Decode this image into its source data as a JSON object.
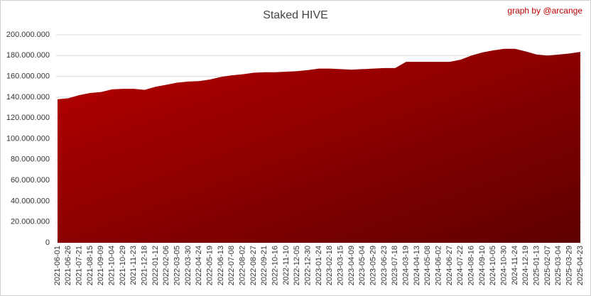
{
  "chart_data": {
    "type": "area",
    "title": "Staked HIVE",
    "annotation": "graph by @arcange",
    "categories": [
      "2021-06-01",
      "2021-06-26",
      "2021-07-21",
      "2021-08-15",
      "2021-09-09",
      "2021-10-04",
      "2021-10-29",
      "2021-11-23",
      "2021-12-18",
      "2022-01-12",
      "2022-02-06",
      "2022-03-05",
      "2022-03-30",
      "2022-04-24",
      "2022-05-19",
      "2022-06-13",
      "2022-07-08",
      "2022-08-02",
      "2022-08-27",
      "2022-09-21",
      "2022-10-16",
      "2022-11-10",
      "2022-12-05",
      "2022-12-30",
      "2023-01-24",
      "2023-02-18",
      "2023-03-15",
      "2023-04-09",
      "2023-05-04",
      "2023-05-29",
      "2023-06-23",
      "2023-07-18",
      "2024-03-19",
      "2024-04-13",
      "2024-05-08",
      "2024-06-02",
      "2024-06-27",
      "2024-07-22",
      "2024-08-16",
      "2024-09-10",
      "2024-10-05",
      "2024-10-30",
      "2024-11-24",
      "2024-12-19",
      "2025-01-13",
      "2025-02-07",
      "2025-03-04",
      "2025-03-29",
      "2025-04-23"
    ],
    "values": [
      138000000,
      139000000,
      142000000,
      144000000,
      145000000,
      147500000,
      148000000,
      148000000,
      147000000,
      150000000,
      152000000,
      154000000,
      155000000,
      155500000,
      157000000,
      159500000,
      161000000,
      162000000,
      163500000,
      164000000,
      164000000,
      164500000,
      165000000,
      166000000,
      167500000,
      167500000,
      167000000,
      166500000,
      167000000,
      167500000,
      168000000,
      168000000,
      174000000,
      174000000,
      174000000,
      174000000,
      174000000,
      176000000,
      180000000,
      183000000,
      185000000,
      186500000,
      186500000,
      184000000,
      181000000,
      180000000,
      181000000,
      182000000,
      183500000
    ],
    "color": "#b80000",
    "ylim": [
      0,
      200000000
    ],
    "yticks": [
      0,
      {
        "value": 20000000,
        "label": "20.000.000"
      },
      {
        "value": 40000000,
        "label": "40.000.000"
      },
      {
        "value": 60000000,
        "label": "60.000.000"
      },
      {
        "value": 80000000,
        "label": "80.000.000"
      },
      {
        "value": 100000000,
        "label": "100.000.000"
      },
      {
        "value": 120000000,
        "label": "120.000.000"
      },
      {
        "value": 140000000,
        "label": "140.000.000"
      },
      {
        "value": 160000000,
        "label": "160.000.000"
      },
      {
        "value": 180000000,
        "label": "180.000.000"
      },
      {
        "value": 200000000,
        "label": "200.000.000"
      }
    ],
    "grid": true
  }
}
